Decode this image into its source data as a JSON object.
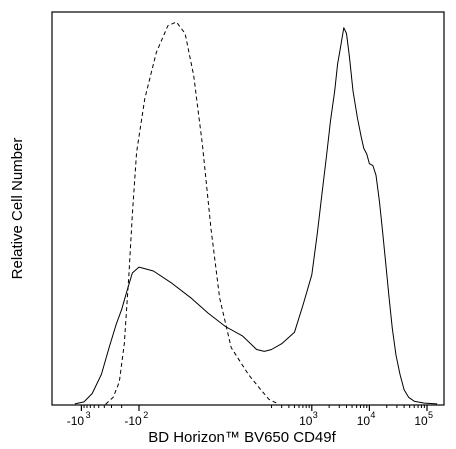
{
  "chart_data": {
    "type": "line",
    "title": "",
    "xlabel": "BD Horizon™ BV650 CD49f",
    "ylabel": "Relative Cell Number",
    "x_scale": "biexponential",
    "x_ticks": [
      {
        "value": -1000,
        "base": "-10",
        "exp": "3"
      },
      {
        "value": -100,
        "base": "-10",
        "exp": "2"
      },
      {
        "value": 1000,
        "base": "10",
        "exp": "3"
      },
      {
        "value": 10000,
        "base": "10",
        "exp": "4"
      },
      {
        "value": 100000,
        "base": "10",
        "exp": "5"
      }
    ],
    "xlim": [
      -1300,
      150000
    ],
    "ylim": [
      0,
      100
    ],
    "y_ticks_labeled": false,
    "grid": false,
    "legend": "none",
    "series": [
      {
        "style": "solid",
        "color": "#000000",
        "points": [
          [
            -1300,
            0.3
          ],
          [
            -900,
            0.8
          ],
          [
            -650,
            3
          ],
          [
            -450,
            8
          ],
          [
            -330,
            15
          ],
          [
            -250,
            21
          ],
          [
            -200,
            25
          ],
          [
            -160,
            30
          ],
          [
            -130,
            34.5
          ],
          [
            -100,
            36
          ],
          [
            -75,
            35
          ],
          [
            -45,
            32
          ],
          [
            -10,
            28
          ],
          [
            20,
            24
          ],
          [
            50,
            20.5
          ],
          [
            80,
            18
          ],
          [
            110,
            14.5
          ],
          [
            150,
            14
          ],
          [
            200,
            14.5
          ],
          [
            300,
            16
          ],
          [
            500,
            19
          ],
          [
            700,
            26
          ],
          [
            1000,
            34
          ],
          [
            1250,
            45
          ],
          [
            1500,
            55
          ],
          [
            1800,
            65
          ],
          [
            2100,
            74
          ],
          [
            2500,
            82
          ],
          [
            2800,
            89
          ],
          [
            3200,
            94
          ],
          [
            3600,
            98.5
          ],
          [
            4000,
            97
          ],
          [
            4500,
            91
          ],
          [
            5200,
            82
          ],
          [
            6200,
            75
          ],
          [
            7200,
            70
          ],
          [
            8000,
            67
          ],
          [
            9000,
            65.5
          ],
          [
            10000,
            63
          ],
          [
            11500,
            62.5
          ],
          [
            13000,
            60
          ],
          [
            15000,
            53
          ],
          [
            17000,
            45
          ],
          [
            19500,
            36
          ],
          [
            22000,
            28
          ],
          [
            25000,
            20
          ],
          [
            29000,
            13
          ],
          [
            34000,
            8
          ],
          [
            40000,
            4
          ],
          [
            48000,
            2
          ],
          [
            60000,
            1
          ],
          [
            90000,
            0.5
          ],
          [
            150000,
            0.3
          ]
        ]
      },
      {
        "style": "dashed",
        "color": "#000000",
        "points": [
          [
            -380,
            0.2
          ],
          [
            -280,
            2
          ],
          [
            -220,
            6
          ],
          [
            -180,
            16
          ],
          [
            -150,
            34
          ],
          [
            -130,
            50
          ],
          [
            -110,
            66
          ],
          [
            -90,
            80
          ],
          [
            -70,
            92
          ],
          [
            -50,
            99
          ],
          [
            -35,
            100
          ],
          [
            -20,
            97
          ],
          [
            -5,
            86
          ],
          [
            10,
            68
          ],
          [
            25,
            46
          ],
          [
            40,
            28
          ],
          [
            60,
            15
          ],
          [
            90,
            8
          ],
          [
            130,
            4
          ],
          [
            180,
            1.5
          ],
          [
            260,
            0.3
          ]
        ]
      }
    ]
  }
}
